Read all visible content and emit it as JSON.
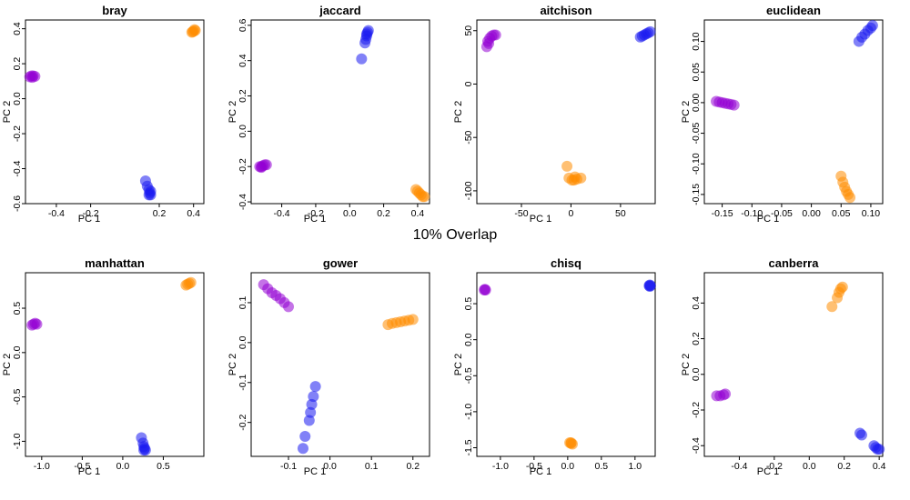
{
  "figure_title": "10% Overlap",
  "colors": {
    "group_a": "#9400D3",
    "group_b": "#1A1AF0",
    "group_c": "#FF8C00"
  },
  "chart_data": [
    {
      "type": "scatter",
      "title": "bray",
      "xlabel": "PC 1",
      "ylabel": "PC 2",
      "xlim": [
        -0.58,
        0.46
      ],
      "ylim": [
        -0.6,
        0.45
      ],
      "xticks": [
        "-0.4",
        "-0.2",
        "0.2",
        "0.4"
      ],
      "xtick_values": [
        -0.4,
        -0.2,
        0.2,
        0.4
      ],
      "yticks": [
        "-0.6",
        "-0.4",
        "-0.2",
        "0.0",
        "0.2",
        "0.4"
      ],
      "ytick_values": [
        -0.6,
        -0.4,
        -0.2,
        0.0,
        0.2,
        0.4
      ],
      "series": [
        {
          "color": "#9400D3",
          "points": [
            [
              -0.555,
              0.125
            ],
            [
              -0.545,
              0.13
            ],
            [
              -0.535,
              0.13
            ],
            [
              -0.525,
              0.128
            ],
            [
              -0.54,
              0.122
            ]
          ]
        },
        {
          "color": "#1A1AF0",
          "points": [
            [
              0.12,
              -0.47
            ],
            [
              0.13,
              -0.5
            ],
            [
              0.14,
              -0.52
            ],
            [
              0.145,
              -0.54
            ],
            [
              0.15,
              -0.55
            ],
            [
              0.14,
              -0.55
            ],
            [
              0.15,
              -0.53
            ]
          ]
        },
        {
          "color": "#FF8C00",
          "points": [
            [
              0.39,
              0.38
            ],
            [
              0.4,
              0.385
            ],
            [
              0.41,
              0.39
            ],
            [
              0.405,
              0.395
            ],
            [
              0.395,
              0.383
            ]
          ]
        }
      ]
    },
    {
      "type": "scatter",
      "title": "jaccard",
      "xlabel": "PC 1",
      "ylabel": "PC 2",
      "xlim": [
        -0.58,
        0.47
      ],
      "ylim": [
        -0.41,
        0.63
      ],
      "xticks": [
        "-0.4",
        "-0.2",
        "0.0",
        "0.2",
        "0.4"
      ],
      "xtick_values": [
        -0.4,
        -0.2,
        0.0,
        0.2,
        0.4
      ],
      "yticks": [
        "-0.4",
        "-0.2",
        "0.0",
        "0.2",
        "0.4",
        "0.6"
      ],
      "ytick_values": [
        -0.4,
        -0.2,
        0.0,
        0.2,
        0.4,
        0.6
      ],
      "series": [
        {
          "color": "#9400D3",
          "points": [
            [
              -0.53,
              -0.2
            ],
            [
              -0.52,
              -0.2
            ],
            [
              -0.51,
              -0.195
            ],
            [
              -0.5,
              -0.19
            ],
            [
              -0.49,
              -0.19
            ],
            [
              -0.52,
              -0.205
            ]
          ]
        },
        {
          "color": "#1A1AF0",
          "points": [
            [
              0.07,
              0.41
            ],
            [
              0.09,
              0.5
            ],
            [
              0.095,
              0.52
            ],
            [
              0.1,
              0.54
            ],
            [
              0.105,
              0.56
            ],
            [
              0.11,
              0.57
            ],
            [
              0.1,
              0.55
            ]
          ]
        },
        {
          "color": "#FF8C00",
          "points": [
            [
              0.39,
              -0.33
            ],
            [
              0.4,
              -0.34
            ],
            [
              0.41,
              -0.35
            ],
            [
              0.42,
              -0.36
            ],
            [
              0.43,
              -0.37
            ],
            [
              0.44,
              -0.37
            ]
          ]
        }
      ]
    },
    {
      "type": "scatter",
      "title": "aitchison",
      "xlabel": "PC 1",
      "ylabel": "PC 2",
      "xlim": [
        -95,
        85
      ],
      "ylim": [
        -112,
        60
      ],
      "xticks": [
        "-50",
        "0",
        "50"
      ],
      "xtick_values": [
        -50,
        0,
        50
      ],
      "yticks": [
        "-100",
        "-50",
        "0",
        "50"
      ],
      "ytick_values": [
        -100,
        -50,
        0,
        50
      ],
      "series": [
        {
          "color": "#9400D3",
          "points": [
            [
              -85,
              35
            ],
            [
              -84,
              40
            ],
            [
              -82,
              43
            ],
            [
              -80,
              45
            ],
            [
              -78,
              46
            ],
            [
              -76,
              46
            ],
            [
              -83,
              38
            ]
          ]
        },
        {
          "color": "#1A1AF0",
          "points": [
            [
              70,
              44
            ],
            [
              72,
              45
            ],
            [
              74,
              46
            ],
            [
              76,
              47
            ],
            [
              78,
              48
            ],
            [
              80,
              49
            ]
          ]
        },
        {
          "color": "#FF8C00",
          "points": [
            [
              -4,
              -77
            ],
            [
              -2,
              -88
            ],
            [
              1,
              -90
            ],
            [
              3,
              -90
            ],
            [
              6,
              -89
            ],
            [
              10,
              -88
            ],
            [
              4,
              -87
            ]
          ]
        }
      ]
    },
    {
      "type": "scatter",
      "title": "euclidean",
      "xlabel": "PC 1",
      "ylabel": "PC 2",
      "xlim": [
        -0.18,
        0.12
      ],
      "ylim": [
        -0.165,
        0.135
      ],
      "xticks": [
        "-0.15",
        "-0.10",
        "-0.05",
        "0.00",
        "0.05",
        "0.10"
      ],
      "xtick_values": [
        -0.15,
        -0.1,
        -0.05,
        0.0,
        0.05,
        0.1
      ],
      "yticks": [
        "-0.15",
        "-0.10",
        "-0.05",
        "0.00",
        "0.05",
        "0.10"
      ],
      "ytick_values": [
        -0.15,
        -0.1,
        -0.05,
        0.0,
        0.05,
        0.1
      ],
      "series": [
        {
          "color": "#9400D3",
          "points": [
            [
              -0.16,
              0.002
            ],
            [
              -0.155,
              0.001
            ],
            [
              -0.15,
              0.0
            ],
            [
              -0.145,
              -0.001
            ],
            [
              -0.14,
              -0.002
            ],
            [
              -0.135,
              -0.003
            ],
            [
              -0.13,
              -0.004
            ]
          ]
        },
        {
          "color": "#1A1AF0",
          "points": [
            [
              0.08,
              0.1
            ],
            [
              0.085,
              0.107
            ],
            [
              0.09,
              0.112
            ],
            [
              0.095,
              0.118
            ],
            [
              0.1,
              0.122
            ],
            [
              0.103,
              0.126
            ]
          ]
        },
        {
          "color": "#FF8C00",
          "points": [
            [
              0.05,
              -0.12
            ],
            [
              0.053,
              -0.13
            ],
            [
              0.056,
              -0.138
            ],
            [
              0.059,
              -0.145
            ],
            [
              0.062,
              -0.15
            ],
            [
              0.065,
              -0.155
            ]
          ]
        }
      ]
    },
    {
      "type": "scatter",
      "title": "manhattan",
      "xlabel": "PC 1",
      "ylabel": "PC 2",
      "xlim": [
        -1.2,
        1.0
      ],
      "ylim": [
        -1.17,
        0.9
      ],
      "xticks": [
        "-1.0",
        "-0.5",
        "0.0",
        "0.5"
      ],
      "xtick_values": [
        -1.0,
        -0.5,
        0.0,
        0.5
      ],
      "yticks": [
        "-1.0",
        "-0.5",
        "0.0",
        "0.5"
      ],
      "ytick_values": [
        -1.0,
        -0.5,
        0.0,
        0.5
      ],
      "series": [
        {
          "color": "#9400D3",
          "points": [
            [
              -1.12,
              0.31
            ],
            [
              -1.1,
              0.32
            ],
            [
              -1.08,
              0.33
            ],
            [
              -1.06,
              0.32
            ]
          ]
        },
        {
          "color": "#1A1AF0",
          "points": [
            [
              0.23,
              -0.96
            ],
            [
              0.25,
              -1.02
            ],
            [
              0.26,
              -1.06
            ],
            [
              0.27,
              -1.08
            ],
            [
              0.28,
              -1.1
            ],
            [
              0.26,
              -1.1
            ]
          ]
        },
        {
          "color": "#FF8C00",
          "points": [
            [
              0.78,
              0.76
            ],
            [
              0.8,
              0.77
            ],
            [
              0.82,
              0.78
            ],
            [
              0.84,
              0.79
            ]
          ]
        }
      ]
    },
    {
      "type": "scatter",
      "title": "gower",
      "xlabel": "PC 1",
      "ylabel": "PC 2",
      "xlim": [
        -0.19,
        0.24
      ],
      "ylim": [
        -0.285,
        0.175
      ],
      "xticks": [
        "-0.1",
        "0.0",
        "0.1",
        "0.2"
      ],
      "xtick_values": [
        -0.1,
        0.0,
        0.1,
        0.2
      ],
      "yticks": [
        "-0.2",
        "-0.1",
        "0.0",
        "0.1"
      ],
      "ytick_values": [
        -0.2,
        -0.1,
        0.0,
        0.1
      ],
      "series": [
        {
          "color": "#9400D3",
          "points": [
            [
              -0.16,
              0.145
            ],
            [
              -0.15,
              0.135
            ],
            [
              -0.14,
              0.125
            ],
            [
              -0.13,
              0.118
            ],
            [
              -0.12,
              0.11
            ],
            [
              -0.11,
              0.1
            ],
            [
              -0.1,
              0.09
            ]
          ]
        },
        {
          "color": "#1A1AF0",
          "points": [
            [
              -0.065,
              -0.265
            ],
            [
              -0.06,
              -0.235
            ],
            [
              -0.05,
              -0.195
            ],
            [
              -0.047,
              -0.175
            ],
            [
              -0.044,
              -0.155
            ],
            [
              -0.04,
              -0.135
            ],
            [
              -0.035,
              -0.11
            ]
          ]
        },
        {
          "color": "#FF8C00",
          "points": [
            [
              0.14,
              0.045
            ],
            [
              0.15,
              0.048
            ],
            [
              0.16,
              0.05
            ],
            [
              0.17,
              0.052
            ],
            [
              0.18,
              0.054
            ],
            [
              0.19,
              0.056
            ],
            [
              0.2,
              0.058
            ]
          ]
        }
      ]
    },
    {
      "type": "scatter",
      "title": "chisq",
      "xlabel": "PC 1",
      "ylabel": "PC 2",
      "xlim": [
        -1.35,
        1.3
      ],
      "ylim": [
        -1.62,
        0.93
      ],
      "xticks": [
        "-1.0",
        "-0.5",
        "0.0",
        "0.5",
        "1.0"
      ],
      "xtick_values": [
        -1.0,
        -0.5,
        0.0,
        0.5,
        1.0
      ],
      "yticks": [
        "-1.5",
        "-1.0",
        "-0.5",
        "0.0",
        "0.5"
      ],
      "ytick_values": [
        -1.5,
        -1.0,
        -0.5,
        0.0,
        0.5
      ],
      "series": [
        {
          "color": "#9400D3",
          "points": [
            [
              -1.24,
              0.69
            ],
            [
              -1.23,
              0.7
            ],
            [
              -1.22,
              0.69
            ]
          ]
        },
        {
          "color": "#1A1AF0",
          "points": [
            [
              1.21,
              0.75
            ],
            [
              1.22,
              0.76
            ],
            [
              1.23,
              0.75
            ],
            [
              1.22,
              0.74
            ]
          ]
        },
        {
          "color": "#FF8C00",
          "points": [
            [
              0.03,
              -1.43
            ],
            [
              0.05,
              -1.44
            ],
            [
              0.07,
              -1.45
            ],
            [
              0.05,
              -1.43
            ]
          ]
        }
      ]
    },
    {
      "type": "scatter",
      "title": "canberra",
      "xlabel": "PC 1",
      "ylabel": "PC 2",
      "xlim": [
        -0.6,
        0.42
      ],
      "ylim": [
        -0.46,
        0.57
      ],
      "xticks": [
        "-0.4",
        "-0.2",
        "0.0",
        "0.2",
        "0.4"
      ],
      "xtick_values": [
        -0.4,
        -0.2,
        0.0,
        0.2,
        0.4
      ],
      "yticks": [
        "-0.4",
        "-0.2",
        "0.0",
        "0.2",
        "0.4"
      ],
      "ytick_values": [
        -0.4,
        -0.2,
        0.0,
        0.2,
        0.4
      ],
      "series": [
        {
          "color": "#9400D3",
          "points": [
            [
              -0.53,
              -0.12
            ],
            [
              -0.51,
              -0.12
            ],
            [
              -0.49,
              -0.115
            ],
            [
              -0.48,
              -0.11
            ]
          ]
        },
        {
          "color": "#1A1AF0",
          "points": [
            [
              0.29,
              -0.33
            ],
            [
              0.3,
              -0.34
            ],
            [
              0.37,
              -0.4
            ],
            [
              0.38,
              -0.41
            ],
            [
              0.39,
              -0.42
            ],
            [
              0.4,
              -0.42
            ]
          ]
        },
        {
          "color": "#FF8C00",
          "points": [
            [
              0.13,
              0.38
            ],
            [
              0.16,
              0.43
            ],
            [
              0.17,
              0.46
            ],
            [
              0.18,
              0.48
            ],
            [
              0.19,
              0.49
            ]
          ]
        }
      ]
    }
  ]
}
